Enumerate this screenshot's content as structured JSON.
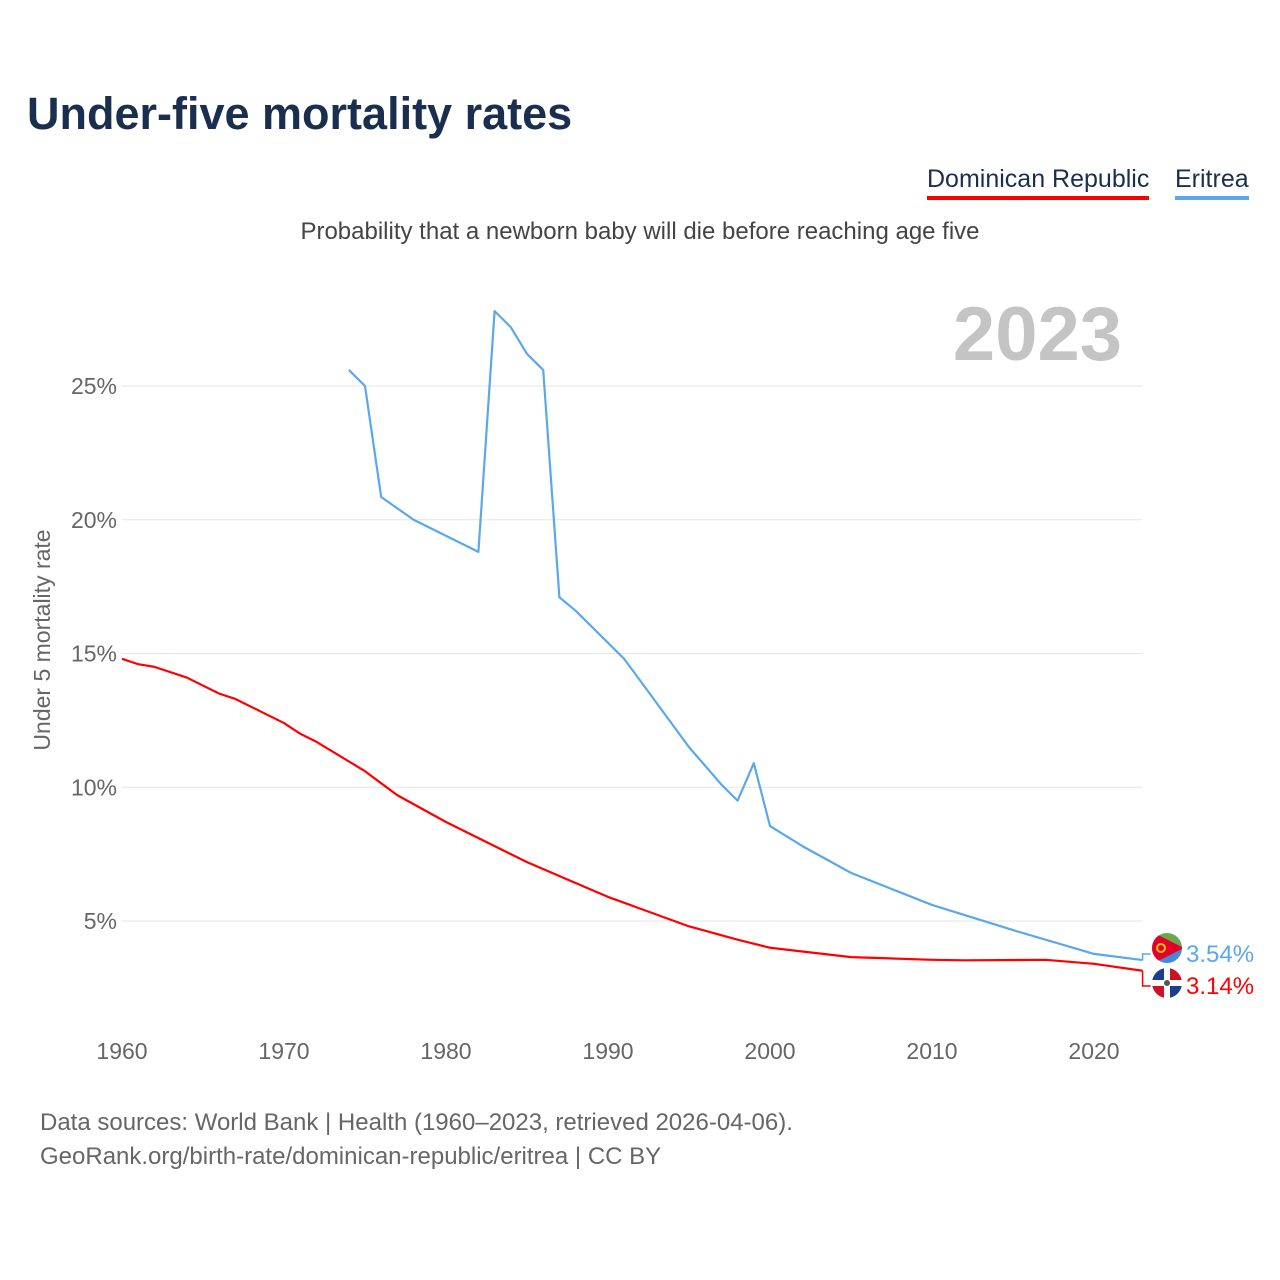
{
  "title": "Under-five mortality rates",
  "legend": [
    "Dominican Republic",
    "Eritrea"
  ],
  "subtitle": "Probability that a newborn baby will die before reaching age five",
  "footer": {
    "line1": "Data sources: World Bank | Health (1960–2023, retrieved 2026-04-06).",
    "line2": "GeoRank.org/birth-rate/dominican-republic/eritrea | CC BY"
  },
  "chart_data": {
    "type": "line",
    "title": "Under-five mortality rates",
    "year_label": "2023",
    "xlabel": "",
    "ylabel": "Under 5 mortality rate",
    "xlim": [
      1960,
      2023
    ],
    "ylim": [
      0,
      28
    ],
    "xticks": [
      1960,
      1970,
      1980,
      1990,
      2000,
      2010,
      2020
    ],
    "yticks": [
      5,
      10,
      15,
      20,
      25
    ],
    "ytick_labels": [
      "5%",
      "10%",
      "15%",
      "20%",
      "25%"
    ],
    "grid": true,
    "legend_position": "top-right",
    "series": [
      {
        "name": "Dominican Republic",
        "color": "#ff0000",
        "end_label": "3.14%",
        "x": [
          1960,
          1961,
          1962,
          1964,
          1966,
          1967,
          1970,
          1971,
          1972,
          1975,
          1977,
          1980,
          1985,
          1990,
          1995,
          1998,
          2000,
          2005,
          2010,
          2012,
          2017,
          2020,
          2023
        ],
        "y": [
          14.8,
          14.6,
          14.5,
          14.1,
          13.5,
          13.3,
          12.4,
          12.0,
          11.7,
          10.6,
          9.7,
          8.7,
          7.2,
          5.9,
          4.8,
          4.3,
          4.0,
          3.65,
          3.55,
          3.53,
          3.55,
          3.4,
          3.14
        ]
      },
      {
        "name": "Eritrea",
        "color": "#5ba7ec",
        "end_label": "3.54%",
        "x": [
          1974,
          1975,
          1976,
          1978,
          1982,
          1983,
          1984,
          1985,
          1986,
          1987,
          1988,
          1989,
          1990,
          1991,
          1995,
          1997,
          1998,
          1999,
          2000,
          2002,
          2005,
          2010,
          2015,
          2020,
          2023
        ],
        "y": [
          25.6,
          25.0,
          20.85,
          20.0,
          18.8,
          27.8,
          27.2,
          26.2,
          25.6,
          17.1,
          16.6,
          16.0,
          15.4,
          14.8,
          11.5,
          10.1,
          9.5,
          10.9,
          8.55,
          7.8,
          6.8,
          5.6,
          4.66,
          3.77,
          3.54
        ]
      }
    ]
  }
}
